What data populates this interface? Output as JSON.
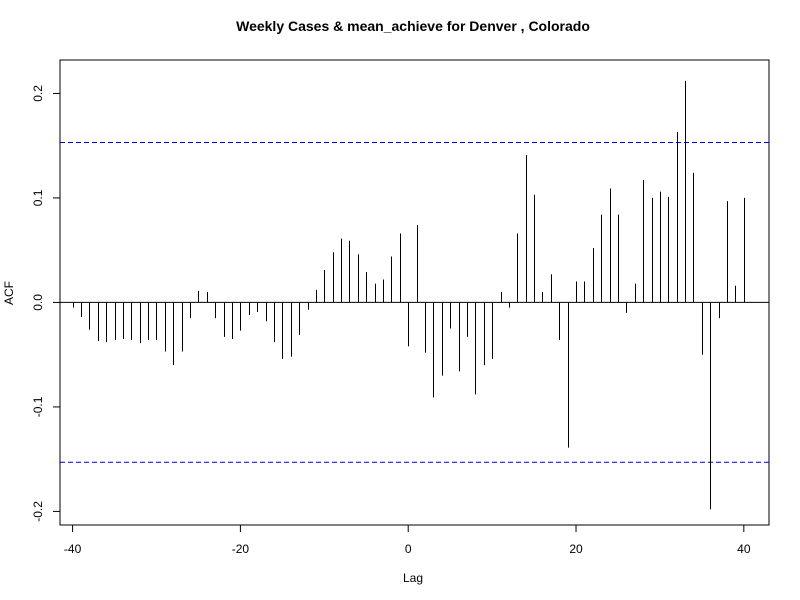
{
  "chart_data": {
    "type": "bar",
    "title": "Weekly Cases & mean_achieve for Denver , Colorado",
    "xlabel": "Lag",
    "ylabel": "ACF",
    "xlim": [
      -41.5,
      43
    ],
    "ylim": [
      -0.213,
      0.232
    ],
    "xticks": [
      -40,
      -20,
      0,
      20,
      40
    ],
    "xtick_labels": [
      "-40",
      "-20",
      "0",
      "20",
      "40"
    ],
    "yticks": [
      -0.2,
      -0.1,
      0.0,
      0.1,
      0.2
    ],
    "ytick_labels": [
      "-0.2",
      "-0.1",
      "0.0",
      "0.1",
      "0.2"
    ],
    "confidence_bounds": [
      0.153,
      -0.153
    ],
    "bound_color": "#0000cc",
    "bar_color": "#000000",
    "x": [
      -40,
      -39,
      -38,
      -37,
      -36,
      -35,
      -34,
      -33,
      -32,
      -31,
      -30,
      -29,
      -28,
      -27,
      -26,
      -25,
      -24,
      -23,
      -22,
      -21,
      -20,
      -19,
      -18,
      -17,
      -16,
      -15,
      -14,
      -13,
      -12,
      -11,
      -10,
      -9,
      -8,
      -7,
      -6,
      -5,
      -4,
      -3,
      -2,
      -1,
      0,
      1,
      2,
      3,
      4,
      5,
      6,
      7,
      8,
      9,
      10,
      11,
      12,
      13,
      14,
      15,
      16,
      17,
      18,
      19,
      20,
      21,
      22,
      23,
      24,
      25,
      26,
      27,
      28,
      29,
      30,
      31,
      32,
      33,
      34,
      35,
      36,
      37,
      38,
      39,
      40
    ],
    "values": [
      -0.005,
      -0.014,
      -0.026,
      -0.037,
      -0.038,
      -0.036,
      -0.035,
      -0.036,
      -0.039,
      -0.036,
      -0.036,
      -0.047,
      -0.06,
      -0.047,
      -0.015,
      0.011,
      0.01,
      -0.015,
      -0.033,
      -0.035,
      -0.027,
      -0.012,
      -0.009,
      -0.018,
      -0.038,
      -0.054,
      -0.052,
      -0.031,
      -0.007,
      0.012,
      0.031,
      0.048,
      0.061,
      0.059,
      0.046,
      0.029,
      0.018,
      0.022,
      0.044,
      0.066,
      -0.042,
      0.074,
      -0.048,
      -0.091,
      -0.07,
      -0.025,
      -0.066,
      -0.033,
      -0.088,
      -0.06,
      -0.054,
      0.01,
      -0.005,
      0.066,
      0.141,
      0.103,
      0.01,
      0.027,
      -0.036,
      -0.139,
      0.02,
      0.02,
      0.052,
      0.084,
      0.109,
      0.084,
      -0.01,
      0.018,
      0.117,
      0.1,
      0.106,
      0.101,
      0.163,
      0.212,
      0.124,
      -0.05,
      -0.198,
      -0.015,
      0.097,
      0.016,
      0.1
    ]
  }
}
